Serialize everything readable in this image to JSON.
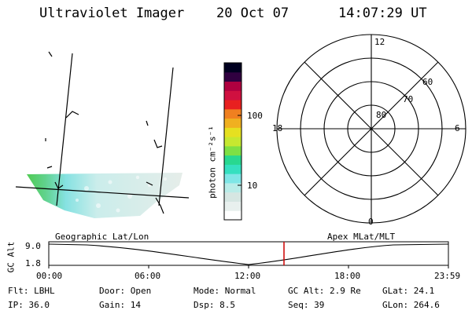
{
  "header": {
    "instrument": "Ultraviolet Imager",
    "date": "20 Oct 07",
    "time": "14:07:29 UT"
  },
  "colorbar": {
    "unit_label": "photon cm⁻²s⁻¹",
    "tick_100": "100",
    "tick_10": "10",
    "colors": [
      "#ffffff",
      "#e8f0ee",
      "#d6e6e2",
      "#b9ece8",
      "#7fe6e6",
      "#35e0c0",
      "#28d890",
      "#7ee044",
      "#c6e830",
      "#e6e020",
      "#f0b020",
      "#f08020",
      "#e82020",
      "#d01040",
      "#b00040",
      "#300040",
      "#000020"
    ]
  },
  "polar": {
    "lat_labels": [
      "80",
      "70",
      "60"
    ],
    "mlt_labels": {
      "top": "12",
      "left": "18",
      "right": "6",
      "bottom": "0"
    }
  },
  "timeline": {
    "y_axis_label": "GC Alt",
    "y_top": "9.0",
    "y_bottom": "1.8",
    "left_label": "Geographic Lat/Lon",
    "right_label": "Apex MLat/MLT",
    "ticks": [
      "00:00",
      "06:00",
      "12:00",
      "18:00",
      "23:59"
    ],
    "current_marker_color": "#cc0000"
  },
  "footer": {
    "flt": "Flt: LBHL",
    "ip": "IP: 36.0",
    "door": "Door: Open",
    "gain": "Gain: 14",
    "mode": "Mode: Normal",
    "dsp": "Dsp:    8.5",
    "gcalt": "GC Alt: 2.9 Re",
    "seq": "Seq: 39",
    "glat": "GLat:  24.1",
    "glon": "GLon: 264.6"
  }
}
